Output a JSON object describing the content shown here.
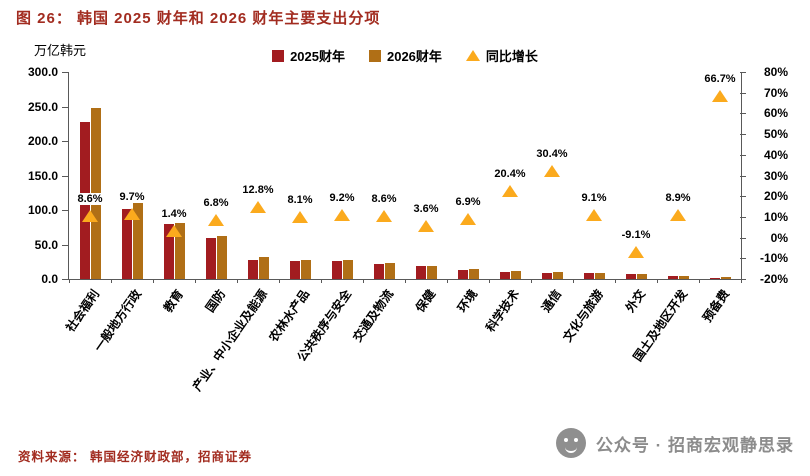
{
  "colors": {
    "title_red": "#A22C20",
    "bar2025": "#A21C20",
    "bar2026": "#B06F16",
    "triangle": "#FBAA1D",
    "axis": "#595959",
    "gray": "#8C8C8C"
  },
  "footer": {
    "source": "资料来源： 韩国经济财政部，招商证券",
    "account": "公众号 · 招商宏观静思录"
  },
  "chart_data": {
    "type": "bar",
    "title": "图 26： 韩国 2025 财年和 2026 财年主要支出分项",
    "unit_label": "万亿韩元",
    "legend": [
      {
        "label": "2025财年",
        "marker": "square",
        "color": "#A21C20"
      },
      {
        "label": "2026财年",
        "marker": "square",
        "color": "#B06F16"
      },
      {
        "label": "同比增长",
        "marker": "triangle",
        "color": "#FBAA1D"
      }
    ],
    "categories": [
      "社会福利",
      "一般地方行政",
      "教育",
      "国防",
      "产业、中小企业及能源",
      "农林水产品",
      "公共秩序与安全",
      "交通及物流",
      "保健",
      "环境",
      "科学技术",
      "通信",
      "文化与旅游",
      "外交",
      "国土及地区开发",
      "预备费"
    ],
    "series": [
      {
        "name": "2025财年",
        "axis": "left",
        "values": [
          228.0,
          101.0,
          80.0,
          59.0,
          28.0,
          26.0,
          25.5,
          21.5,
          18.5,
          13.5,
          9.9,
          8.1,
          8.6,
          7.7,
          4.5,
          1.5
        ]
      },
      {
        "name": "2026财年",
        "axis": "left",
        "values": [
          247.6,
          110.8,
          81.1,
          63.0,
          31.6,
          28.1,
          27.8,
          23.3,
          19.2,
          14.4,
          11.9,
          10.6,
          9.4,
          7.0,
          4.9,
          2.5
        ]
      }
    ],
    "growth": {
      "name": "同比增长",
      "axis": "right",
      "values_pct": [
        8.6,
        9.7,
        1.4,
        6.8,
        12.8,
        8.1,
        9.2,
        8.6,
        3.6,
        6.9,
        20.4,
        30.4,
        9.1,
        -9.1,
        8.9,
        66.7
      ],
      "labels": [
        "8.6%",
        "9.7%",
        "1.4%",
        "6.8%",
        "12.8%",
        "8.1%",
        "9.2%",
        "8.6%",
        "3.6%",
        "6.9%",
        "20.4%",
        "30.4%",
        "9.1%",
        "-9.1%",
        "8.9%",
        "66.7%"
      ]
    },
    "axis_left": {
      "min": 0,
      "max": 300,
      "ticks": [
        "0.0",
        "50.0",
        "100.0",
        "150.0",
        "200.0",
        "250.0",
        "300.0"
      ]
    },
    "axis_right": {
      "min": -20,
      "max": 80,
      "ticks": [
        "-20%",
        "-10%",
        "0%",
        "10%",
        "20%",
        "30%",
        "40%",
        "50%",
        "60%",
        "70%",
        "80%"
      ]
    }
  }
}
